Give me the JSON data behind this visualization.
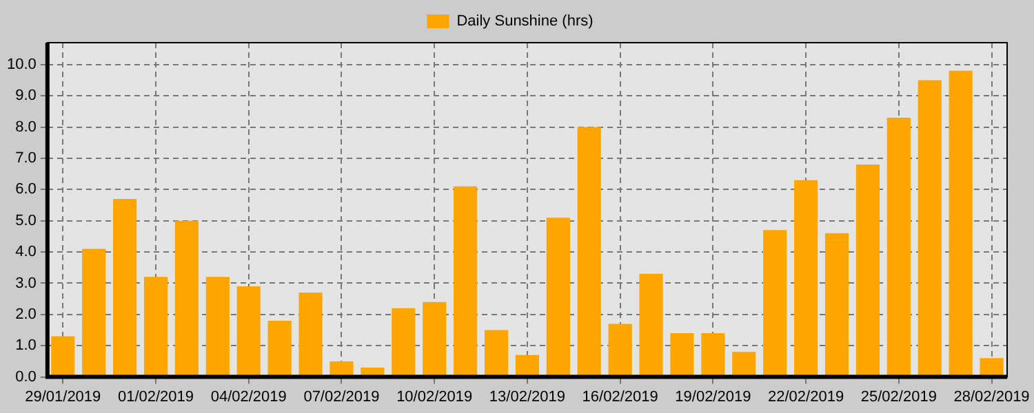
{
  "chart_data": {
    "type": "bar",
    "categories": [
      "29/01/2019",
      null,
      null,
      "01/02/2019",
      null,
      null,
      "04/02/2019",
      null,
      null,
      "07/02/2019",
      null,
      null,
      "10/02/2019",
      null,
      null,
      "13/02/2019",
      null,
      null,
      "16/02/2019",
      null,
      null,
      "19/02/2019",
      null,
      null,
      "22/02/2019",
      null,
      null,
      "25/02/2019",
      null,
      null,
      "28/02/2019"
    ],
    "series": [
      {
        "name": "Daily Sunshine (hrs)",
        "color": "#ffa500",
        "values": [
          1.3,
          4.1,
          5.7,
          3.2,
          5.0,
          3.2,
          2.9,
          1.8,
          2.7,
          0.5,
          0.3,
          2.2,
          2.4,
          6.1,
          1.5,
          0.7,
          5.1,
          8.0,
          1.7,
          3.3,
          1.4,
          1.4,
          0.8,
          4.7,
          6.3,
          4.6,
          6.8,
          8.3,
          9.5,
          9.8,
          0.6
        ]
      }
    ],
    "ylim": [
      0,
      10.7
    ],
    "yticks": [
      {
        "value": 0,
        "label": "0.0"
      },
      {
        "value": 1,
        "label": "1.0"
      },
      {
        "value": 2,
        "label": "2.0"
      },
      {
        "value": 3,
        "label": "3.0"
      },
      {
        "value": 4,
        "label": "4.0"
      },
      {
        "value": 5,
        "label": "5.0"
      },
      {
        "value": 6,
        "label": "6.0"
      },
      {
        "value": 7,
        "label": "7.0"
      },
      {
        "value": 8,
        "label": "8.0"
      },
      {
        "value": 9,
        "label": "9.0"
      },
      {
        "value": 10,
        "label": "10.0"
      }
    ],
    "grid": true,
    "legend": "top"
  }
}
